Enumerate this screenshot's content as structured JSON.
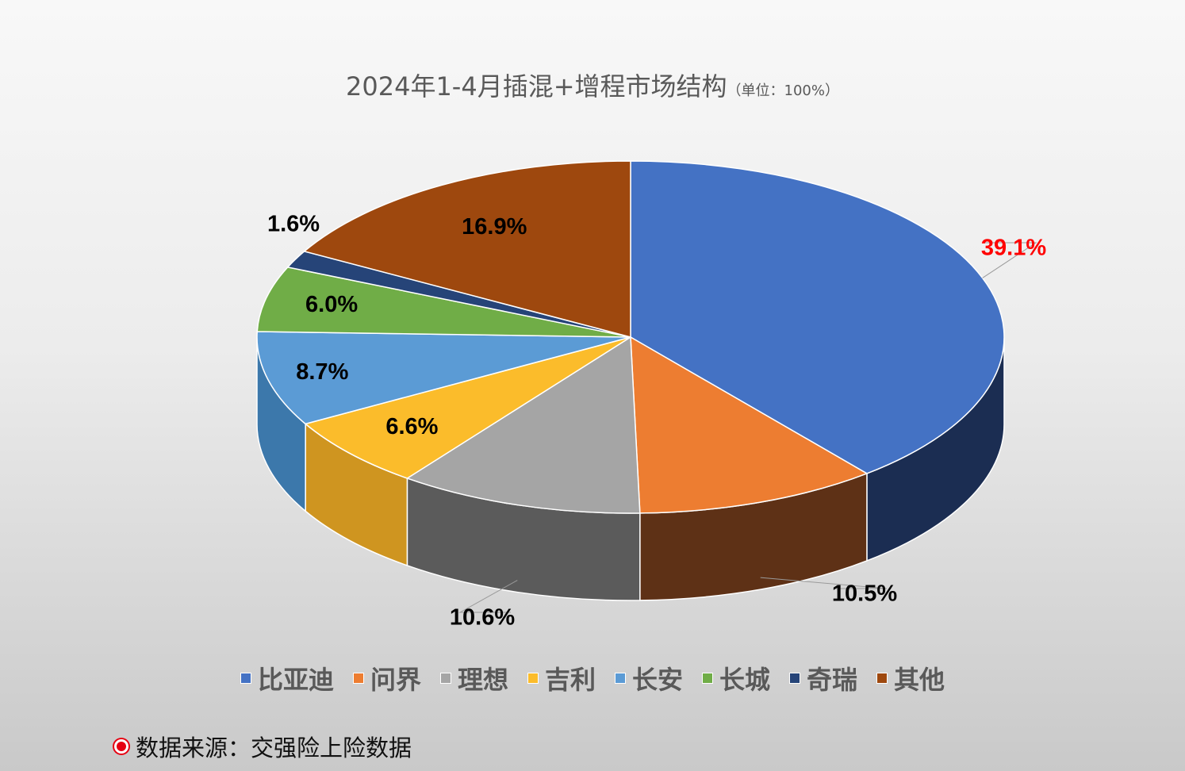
{
  "title": "2024年1-4月插混+增程市场结构",
  "title_unit": "（单位：100%）",
  "chart_data": {
    "type": "pie",
    "style": "3d",
    "title": "2024年1-4月插混+增程市场结构",
    "unit": "（单位：100%）",
    "legend_position": "bottom",
    "slices": [
      {
        "name": "比亚迪",
        "value": 39.1,
        "label": "39.1%",
        "color": "#4472c4",
        "side_color": "#1b2d52",
        "label_color": "#ff0000"
      },
      {
        "name": "问界",
        "value": 10.5,
        "label": "10.5%",
        "color": "#ed7d31",
        "side_color": "#5e3116",
        "label_color": "#000000"
      },
      {
        "name": "理想",
        "value": 10.6,
        "label": "10.6%",
        "color": "#a5a5a5",
        "side_color": "#5b5b5b",
        "label_color": "#000000"
      },
      {
        "name": "吉利",
        "value": 6.6,
        "label": "6.6%",
        "color": "#fbbc2b",
        "side_color": "#cf9520",
        "label_color": "#000000"
      },
      {
        "name": "长安",
        "value": 8.7,
        "label": "8.7%",
        "color": "#5b9bd5",
        "side_color": "#3c78ab",
        "label_color": "#000000"
      },
      {
        "name": "长城",
        "value": 6.0,
        "label": "6.0%",
        "color": "#70ad47",
        "side_color": "#4b7a2e",
        "label_color": "#000000"
      },
      {
        "name": "奇瑞",
        "value": 1.6,
        "label": "1.6%",
        "color": "#264478",
        "side_color": "#15284a",
        "label_color": "#000000"
      },
      {
        "name": "其他",
        "value": 16.9,
        "label": "16.9%",
        "color": "#9e480e",
        "side_color": "#5c2a08",
        "label_color": "#000000"
      }
    ]
  },
  "legend": [
    {
      "label": "比亚迪",
      "color": "#4472c4"
    },
    {
      "label": "问界",
      "color": "#ed7d31"
    },
    {
      "label": "理想",
      "color": "#a5a5a5"
    },
    {
      "label": "吉利",
      "color": "#fbbc2b"
    },
    {
      "label": "长安",
      "color": "#5b9bd5"
    },
    {
      "label": "长城",
      "color": "#70ad47"
    },
    {
      "label": "奇瑞",
      "color": "#264478"
    },
    {
      "label": "其他",
      "color": "#9e480e"
    }
  ],
  "source": {
    "icon": "red-circle-icon",
    "text": "数据来源：交强险上险数据"
  }
}
